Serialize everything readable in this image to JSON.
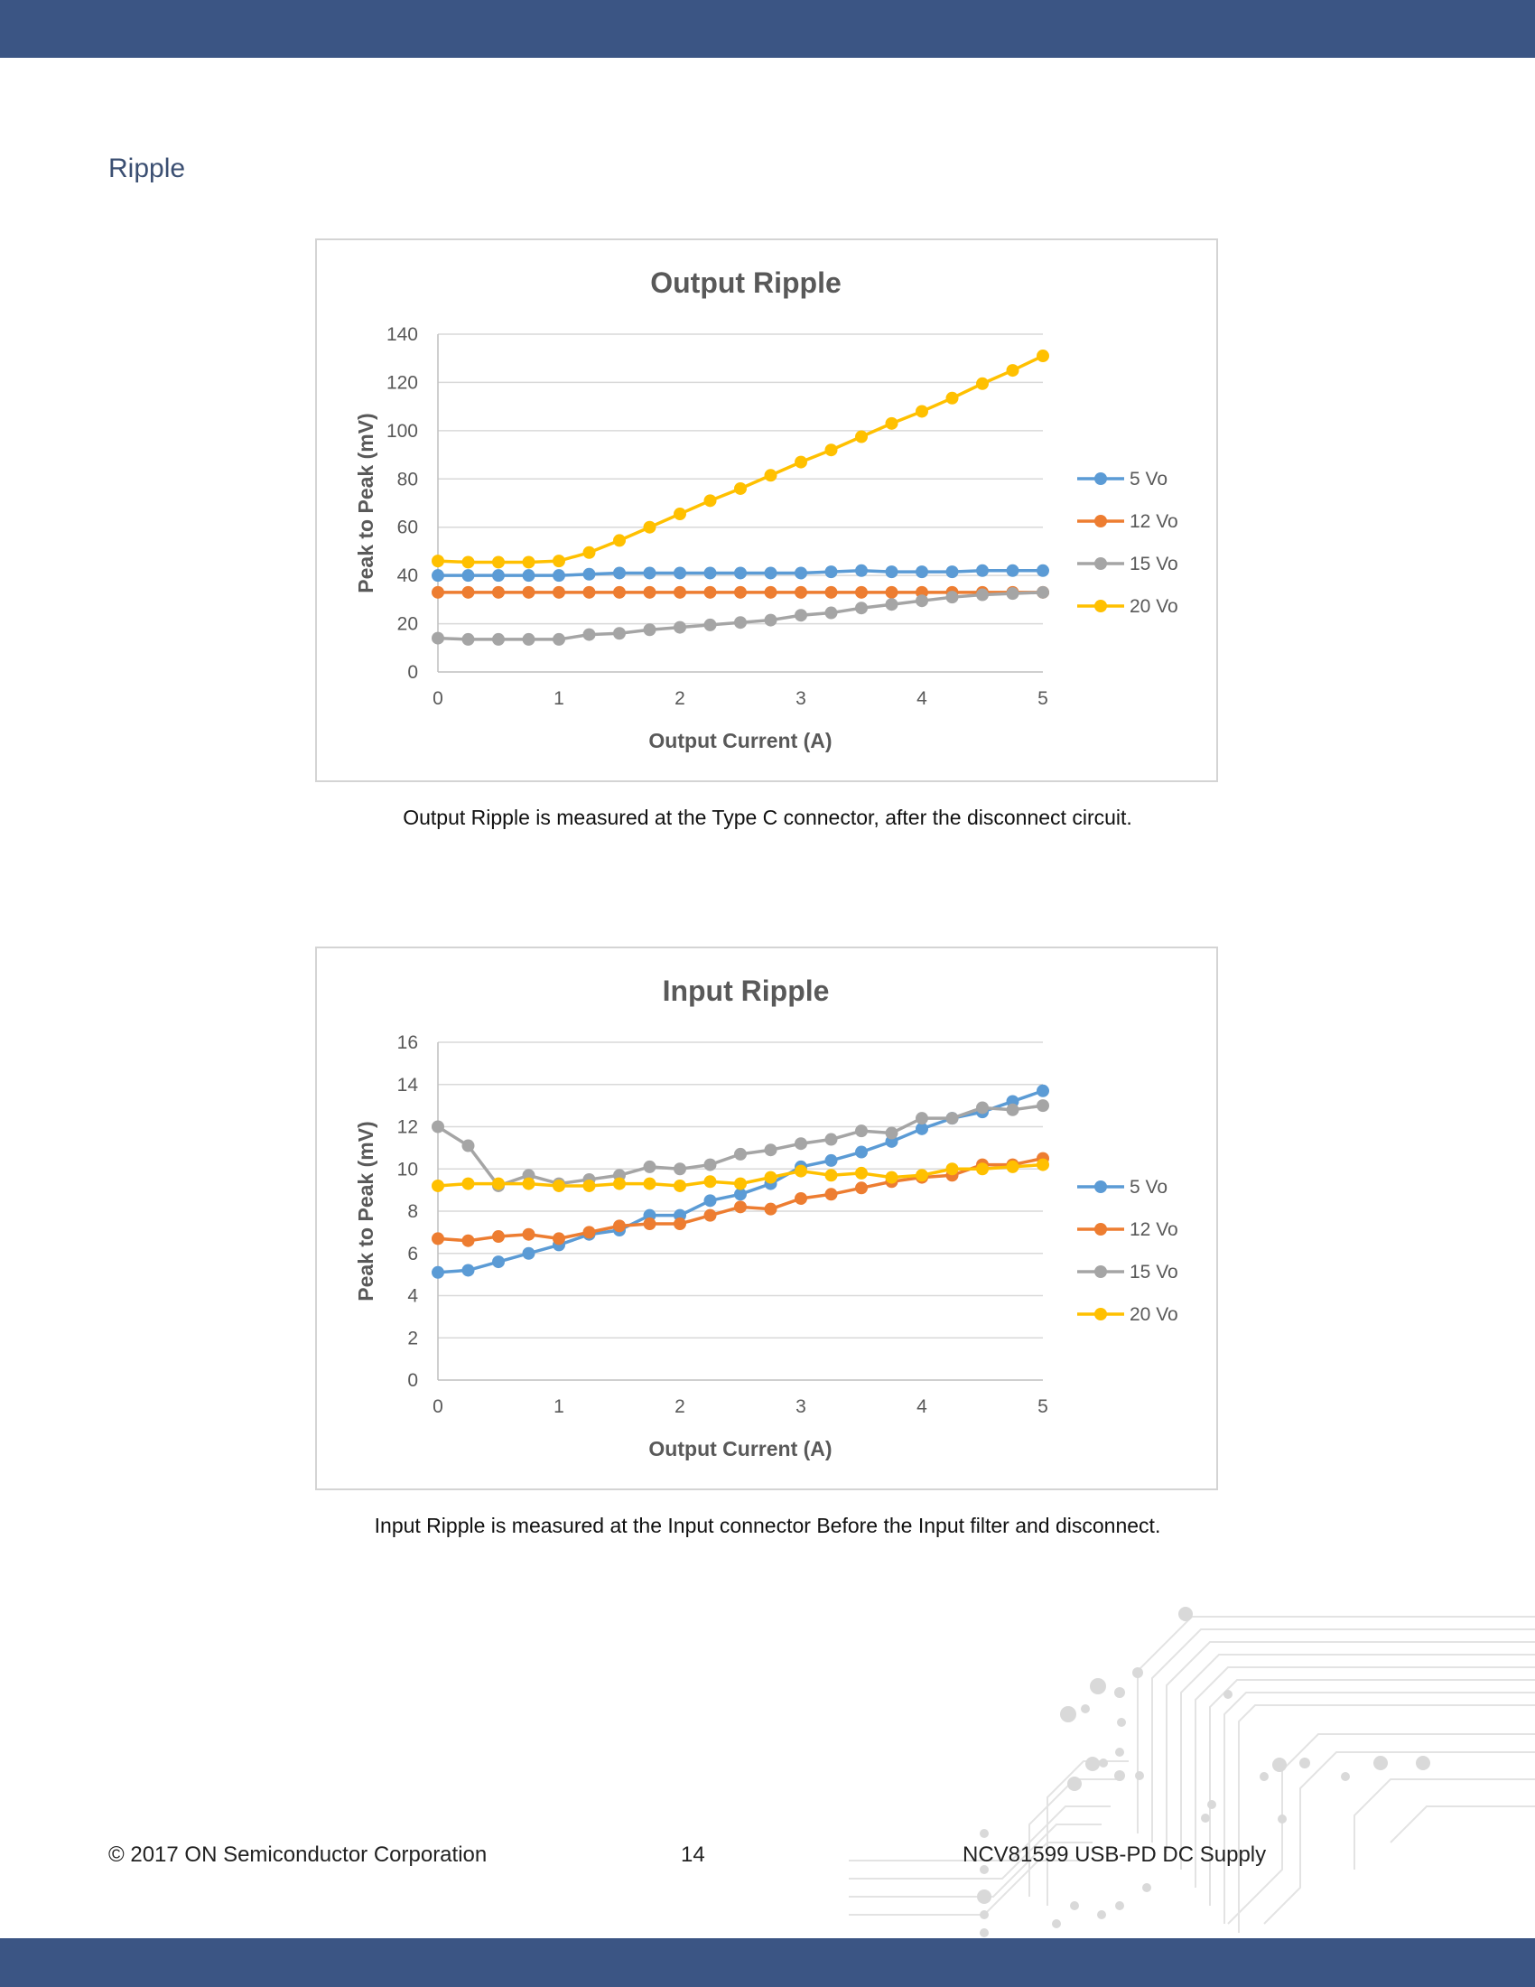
{
  "page": {
    "heading": "Ripple",
    "footer_left": "© 2017 ON Semiconductor Corporation",
    "footer_page": "14",
    "footer_right": "NCV81599 USB-PD DC Supply",
    "caption1": "Output Ripple is measured at the Type C connector, after the disconnect circuit.",
    "caption2": "Input Ripple is measured at the Input connector Before the Input filter and disconnect.",
    "colors": {
      "bar": "#3b5584",
      "heading": "#3b4f72"
    }
  },
  "chart_data": [
    {
      "type": "line",
      "title": "Output Ripple",
      "xlabel": "Output Current (A)",
      "ylabel": "Peak to Peak (mV)",
      "xlim": [
        0,
        5
      ],
      "ylim": [
        0,
        140
      ],
      "xticks": [
        0,
        1,
        2,
        3,
        4,
        5
      ],
      "yticks": [
        0,
        20,
        40,
        60,
        80,
        100,
        120,
        140
      ],
      "grid": true,
      "legend": "right",
      "x": [
        0,
        0.25,
        0.5,
        0.75,
        1,
        1.25,
        1.5,
        1.75,
        2,
        2.25,
        2.5,
        2.75,
        3,
        3.25,
        3.5,
        3.75,
        4,
        4.25,
        4.5,
        4.75,
        5
      ],
      "series": [
        {
          "name": "5 Vo",
          "color": "#5b9bd5",
          "values": [
            40,
            40,
            40,
            40,
            40,
            40.5,
            41,
            41,
            41,
            41,
            41,
            41,
            41,
            41.5,
            42,
            41.5,
            41.5,
            41.5,
            42,
            42,
            42
          ]
        },
        {
          "name": "12 Vo",
          "color": "#ed7d31",
          "values": [
            33,
            33,
            33,
            33,
            33,
            33,
            33,
            33,
            33,
            33,
            33,
            33,
            33,
            33,
            33,
            33,
            33,
            33,
            33,
            33,
            33
          ]
        },
        {
          "name": "15 Vo",
          "color": "#a5a5a5",
          "values": [
            14,
            13.5,
            13.5,
            13.5,
            13.5,
            15.5,
            16,
            17.5,
            18.5,
            19.5,
            20.5,
            21.5,
            23.5,
            24.5,
            26.5,
            28,
            29.5,
            31,
            32,
            32.5,
            33
          ]
        },
        {
          "name": "20 Vo",
          "color": "#ffc000",
          "values": [
            46,
            45.5,
            45.5,
            45.5,
            46,
            49.5,
            54.5,
            60,
            65.5,
            71,
            76,
            81.5,
            87,
            92,
            97.5,
            103,
            108,
            113.5,
            119.5,
            125,
            131
          ]
        }
      ]
    },
    {
      "type": "line",
      "title": "Input Ripple",
      "xlabel": "Output Current (A)",
      "ylabel": "Peak to Peak (mV)",
      "xlim": [
        0,
        5
      ],
      "ylim": [
        0,
        16
      ],
      "xticks": [
        0,
        1,
        2,
        3,
        4,
        5
      ],
      "yticks": [
        0,
        2,
        4,
        6,
        8,
        10,
        12,
        14,
        16
      ],
      "grid": true,
      "legend": "right",
      "x": [
        0,
        0.25,
        0.5,
        0.75,
        1,
        1.25,
        1.5,
        1.75,
        2,
        2.25,
        2.5,
        2.75,
        3,
        3.25,
        3.5,
        3.75,
        4,
        4.25,
        4.5,
        4.75,
        5
      ],
      "series": [
        {
          "name": "5 Vo",
          "color": "#5b9bd5",
          "values": [
            5.1,
            5.2,
            5.6,
            6.0,
            6.4,
            6.9,
            7.1,
            7.8,
            7.8,
            8.5,
            8.8,
            9.3,
            10.1,
            10.4,
            10.8,
            11.3,
            11.9,
            12.4,
            12.7,
            13.2,
            13.7
          ]
        },
        {
          "name": "12 Vo",
          "color": "#ed7d31",
          "values": [
            6.7,
            6.6,
            6.8,
            6.9,
            6.7,
            7.0,
            7.3,
            7.4,
            7.4,
            7.8,
            8.2,
            8.1,
            8.6,
            8.8,
            9.1,
            9.4,
            9.6,
            9.7,
            10.2,
            10.2,
            10.5
          ]
        },
        {
          "name": "15 Vo",
          "color": "#a5a5a5",
          "values": [
            12.0,
            11.1,
            9.2,
            9.7,
            9.3,
            9.5,
            9.7,
            10.1,
            10.0,
            10.2,
            10.7,
            10.9,
            11.2,
            11.4,
            11.8,
            11.7,
            12.4,
            12.4,
            12.9,
            12.8,
            13.0
          ]
        },
        {
          "name": "20 Vo",
          "color": "#ffc000",
          "values": [
            9.2,
            9.3,
            9.3,
            9.3,
            9.2,
            9.2,
            9.3,
            9.3,
            9.2,
            9.4,
            9.3,
            9.6,
            9.9,
            9.7,
            9.8,
            9.6,
            9.7,
            10.0,
            10.0,
            10.1,
            10.2
          ]
        }
      ]
    }
  ]
}
